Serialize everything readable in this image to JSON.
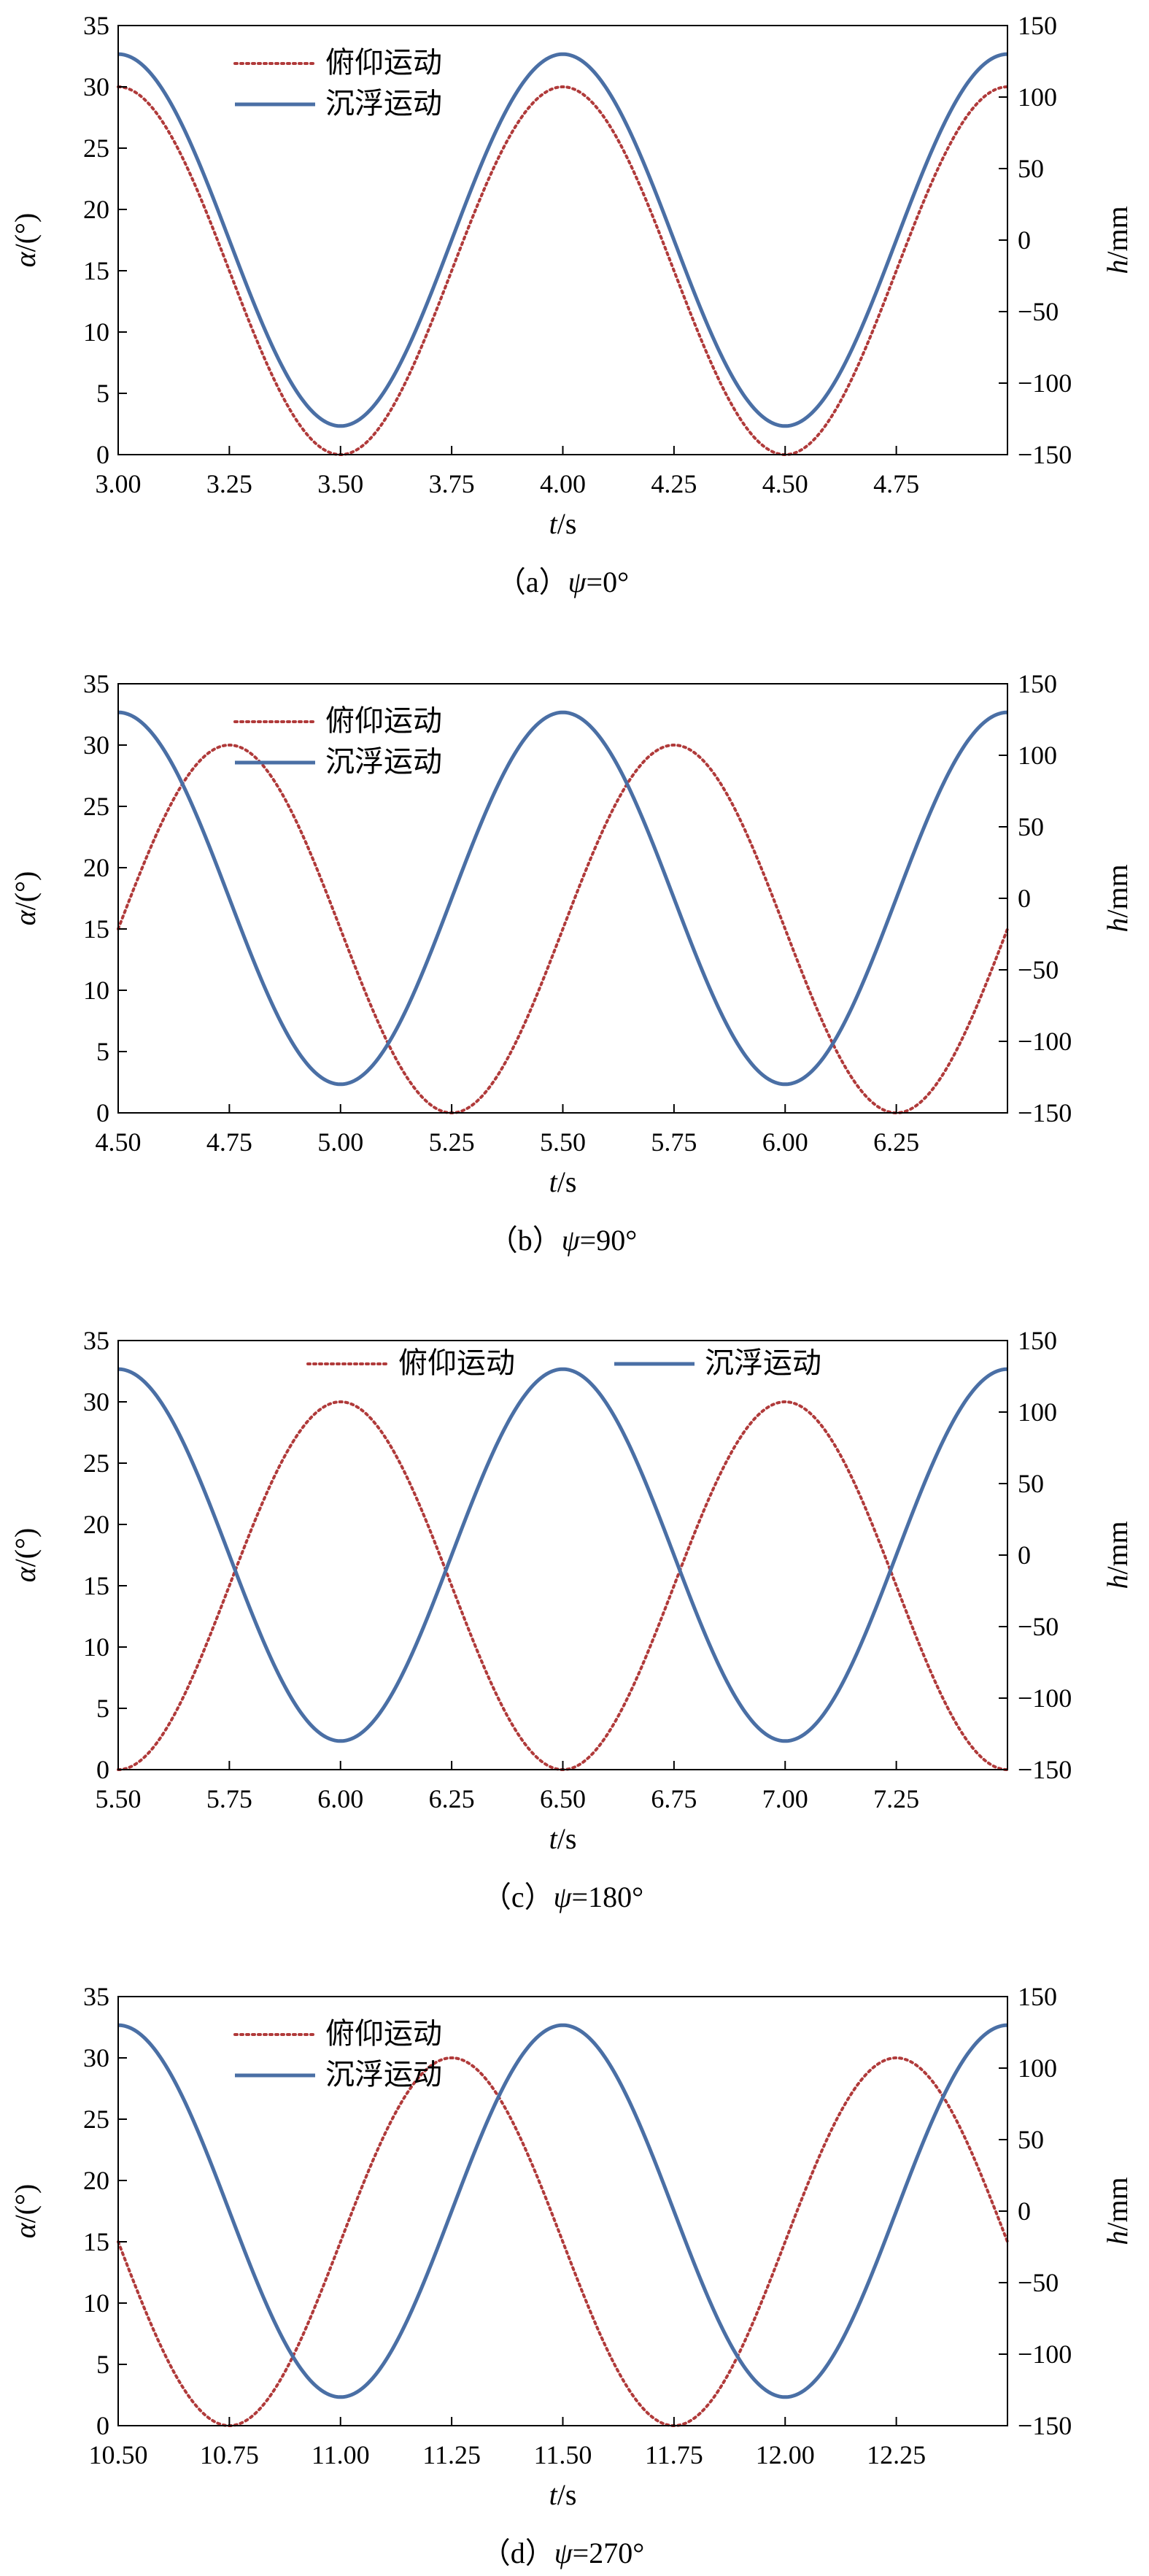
{
  "chart_data": [
    {
      "type": "line",
      "panel": "a",
      "caption": {
        "prefix": "（a）",
        "var": "ψ",
        "value": "=0°"
      },
      "xlabel": {
        "var": "t",
        "unit": "/s"
      },
      "ylabel_left": {
        "var": "α",
        "unit": "/(°)"
      },
      "ylabel_right": {
        "var": "h",
        "unit": "/mm"
      },
      "xlim": [
        3.0,
        5.0
      ],
      "xticks": [
        "3.00",
        "3.25",
        "3.50",
        "3.75",
        "4.00",
        "4.25",
        "4.50",
        "4.75"
      ],
      "ylim_left": [
        0,
        35
      ],
      "yticks_left": [
        "0",
        "5",
        "10",
        "15",
        "20",
        "25",
        "30",
        "35"
      ],
      "ylim_right": [
        -150,
        150
      ],
      "yticks_right": [
        "−150",
        "−100",
        "−50",
        "0",
        "50",
        "100",
        "150"
      ],
      "legend_position": "top-left",
      "series": [
        {
          "name": "俯仰运动",
          "axis": "left",
          "style": "dotted",
          "color": "#b03a3a",
          "function": "alpha = 15 + 15*cos(2*pi*(t - 4.0))",
          "amplitude": 15,
          "offset": 15,
          "peak_t": 4.0,
          "period": 1.0
        },
        {
          "name": "沉浮运动",
          "axis": "right",
          "style": "solid",
          "color": "#4a6fa5",
          "function": "h = 130*cos(2*pi*(t - 4.0))",
          "amplitude": 130,
          "offset": 0,
          "peak_t": 4.0,
          "period": 1.0
        }
      ]
    },
    {
      "type": "line",
      "panel": "b",
      "caption": {
        "prefix": "（b）",
        "var": "ψ",
        "value": "=90°"
      },
      "xlabel": {
        "var": "t",
        "unit": "/s"
      },
      "ylabel_left": {
        "var": "α",
        "unit": "/(°)"
      },
      "ylabel_right": {
        "var": "h",
        "unit": "/mm"
      },
      "xlim": [
        4.5,
        6.5
      ],
      "xticks": [
        "4.50",
        "4.75",
        "5.00",
        "5.25",
        "5.50",
        "5.75",
        "6.00",
        "6.25"
      ],
      "ylim_left": [
        0,
        35
      ],
      "yticks_left": [
        "0",
        "5",
        "10",
        "15",
        "20",
        "25",
        "30",
        "35"
      ],
      "ylim_right": [
        -150,
        150
      ],
      "yticks_right": [
        "−150",
        "−100",
        "−50",
        "0",
        "50",
        "100",
        "150"
      ],
      "legend_position": "top-left",
      "series": [
        {
          "name": "俯仰运动",
          "axis": "left",
          "style": "dotted",
          "color": "#b03a3a",
          "function": "alpha = 15 + 15*cos(2*pi*(t - 4.75))",
          "amplitude": 15,
          "offset": 15,
          "peak_t": 4.75,
          "period": 1.0
        },
        {
          "name": "沉浮运动",
          "axis": "right",
          "style": "solid",
          "color": "#4a6fa5",
          "function": "h = 130*cos(2*pi*(t - 5.5))",
          "amplitude": 130,
          "offset": 0,
          "peak_t": 5.5,
          "period": 1.0
        }
      ]
    },
    {
      "type": "line",
      "panel": "c",
      "caption": {
        "prefix": "（c）",
        "var": "ψ",
        "value": "=180°"
      },
      "xlabel": {
        "var": "t",
        "unit": "/s"
      },
      "ylabel_left": {
        "var": "α",
        "unit": "/(°)"
      },
      "ylabel_right": {
        "var": "h",
        "unit": "/mm"
      },
      "xlim": [
        5.5,
        7.5
      ],
      "xticks": [
        "5.50",
        "5.75",
        "6.00",
        "6.25",
        "6.50",
        "6.75",
        "7.00",
        "7.25"
      ],
      "ylim_left": [
        0,
        35
      ],
      "yticks_left": [
        "0",
        "5",
        "10",
        "15",
        "20",
        "25",
        "30",
        "35"
      ],
      "ylim_right": [
        -150,
        150
      ],
      "yticks_right": [
        "−150",
        "−100",
        "−50",
        "0",
        "50",
        "100",
        "150"
      ],
      "legend_position": "top",
      "series": [
        {
          "name": "俯仰运动",
          "axis": "left",
          "style": "dotted",
          "color": "#b03a3a",
          "function": "alpha = 15 + 15*cos(2*pi*(t - 6.0))",
          "amplitude": 15,
          "offset": 15,
          "peak_t": 6.0,
          "period": 1.0
        },
        {
          "name": "沉浮运动",
          "axis": "right",
          "style": "solid",
          "color": "#4a6fa5",
          "function": "h = 130*cos(2*pi*(t - 6.5))",
          "amplitude": 130,
          "offset": 0,
          "peak_t": 6.5,
          "period": 1.0
        }
      ]
    },
    {
      "type": "line",
      "panel": "d",
      "caption": {
        "prefix": "（d）",
        "var": "ψ",
        "value": "=270°"
      },
      "xlabel": {
        "var": "t",
        "unit": "/s"
      },
      "ylabel_left": {
        "var": "α",
        "unit": "/(°)"
      },
      "ylabel_right": {
        "var": "h",
        "unit": "/mm"
      },
      "xlim": [
        10.5,
        12.5
      ],
      "xticks": [
        "10.50",
        "10.75",
        "11.00",
        "11.25",
        "11.50",
        "11.75",
        "12.00",
        "12.25"
      ],
      "ylim_left": [
        0,
        35
      ],
      "yticks_left": [
        "0",
        "5",
        "10",
        "15",
        "20",
        "25",
        "30",
        "35"
      ],
      "ylim_right": [
        -150,
        150
      ],
      "yticks_right": [
        "−150",
        "−100",
        "−50",
        "0",
        "50",
        "100",
        "150"
      ],
      "legend_position": "top-left",
      "series": [
        {
          "name": "俯仰运动",
          "axis": "left",
          "style": "dotted",
          "color": "#b03a3a",
          "function": "alpha = 15 + 15*cos(2*pi*(t - 11.25))",
          "amplitude": 15,
          "offset": 15,
          "peak_t": 11.25,
          "period": 1.0
        },
        {
          "name": "沉浮运动",
          "axis": "right",
          "style": "solid",
          "color": "#4a6fa5",
          "function": "h = 130*cos(2*pi*(t - 11.5))",
          "amplitude": 130,
          "offset": 0,
          "peak_t": 11.5,
          "period": 1.0
        }
      ]
    }
  ]
}
